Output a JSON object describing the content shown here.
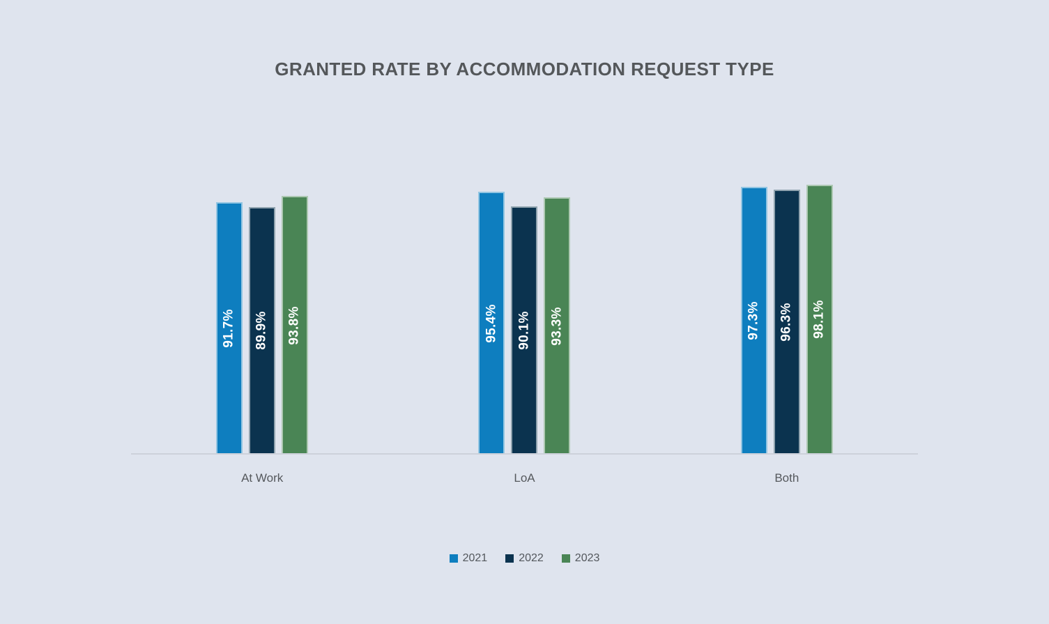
{
  "title": "GRANTED RATE BY ACCOMMODATION REQUEST TYPE",
  "chart_data": {
    "type": "bar",
    "title": "GRANTED RATE BY ACCOMMODATION REQUEST TYPE",
    "categories": [
      "At Work",
      "LoA",
      "Both"
    ],
    "series": [
      {
        "name": "2021",
        "color": "#0e7ebf",
        "values": [
          91.7,
          95.4,
          97.3
        ]
      },
      {
        "name": "2022",
        "color": "#0b334f",
        "values": [
          89.9,
          90.1,
          96.3
        ]
      },
      {
        "name": "2023",
        "color": "#4a8555",
        "values": [
          93.8,
          93.3,
          98.1
        ]
      }
    ],
    "value_suffix": "%",
    "data_labels": [
      "91.7%",
      "89.9%",
      "93.8%",
      "95.4%",
      "90.1%",
      "93.3%",
      "97.3%",
      "96.3%",
      "98.1%"
    ],
    "ylim": [
      0,
      100
    ],
    "y_axis_visible": false,
    "grid": false,
    "legend_position": "bottom"
  },
  "colors": {
    "background": "#dfe4ee",
    "axis_line": "#cdd1da",
    "title_text": "#54575a",
    "category_text": "#55585c",
    "legend_text": "#53575c",
    "bar_label_text": "#ffffff"
  }
}
